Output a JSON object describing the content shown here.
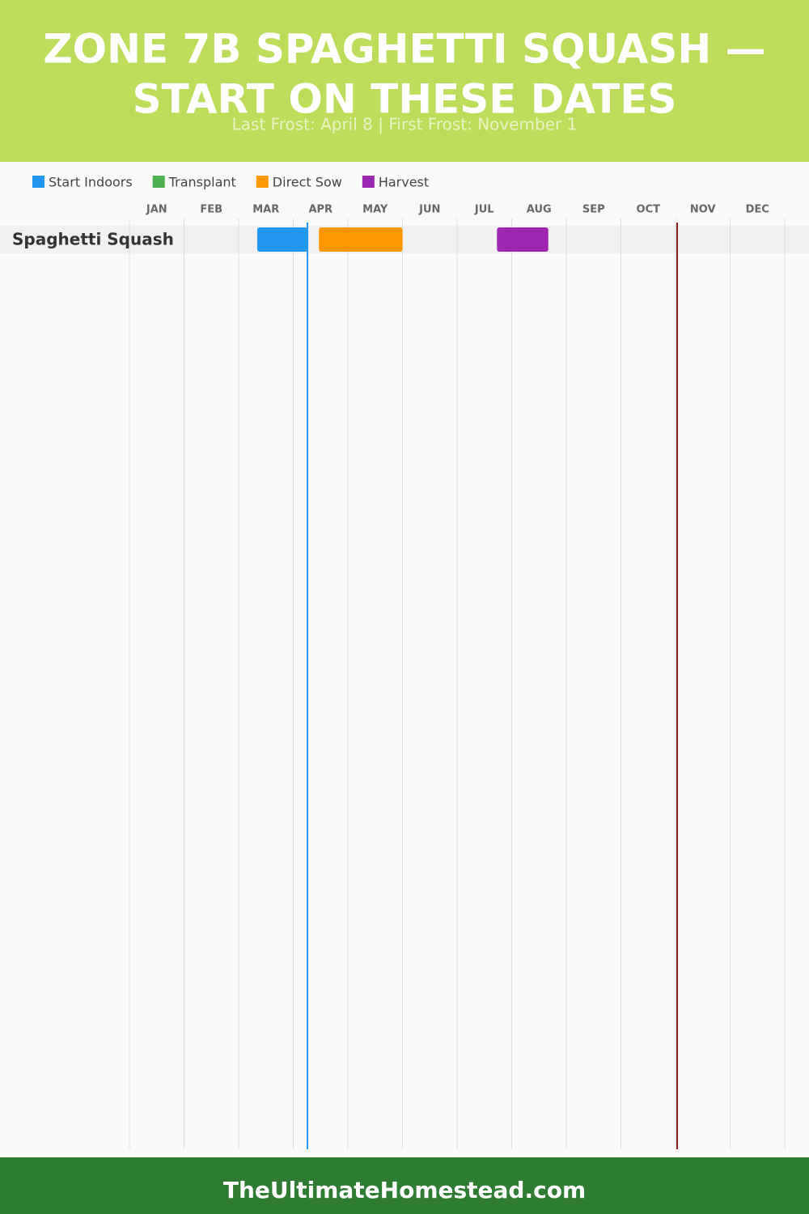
{
  "chart_data": {
    "type": "gantt",
    "title_lines": [
      "ZONE 7B SPAGHETTI SQUASH —",
      "START ON THESE DATES"
    ],
    "subtitle": "Last Frost: April 8 | First Frost: November 1",
    "categories": [
      "JAN",
      "FEB",
      "MAR",
      "APR",
      "MAY",
      "JUN",
      "JUL",
      "AUG",
      "SEP",
      "OCT",
      "NOV",
      "DEC"
    ],
    "xlim": [
      0,
      12
    ],
    "series": [
      {
        "name": "Start Indoors",
        "color": "#2196f3"
      },
      {
        "name": "Transplant",
        "color": "#4caf50"
      },
      {
        "name": "Direct Sow",
        "color": "#ff9800"
      },
      {
        "name": "Harvest",
        "color": "#9c27b0"
      }
    ],
    "rows": [
      {
        "label": "Spaghetti Squash",
        "bars": [
          {
            "series": 0,
            "start": 2.34,
            "end": 3.26
          },
          {
            "series": 2,
            "start": 3.47,
            "end": 5.0
          },
          {
            "series": 3,
            "start": 6.73,
            "end": 7.67
          }
        ]
      }
    ],
    "frost_lines": [
      {
        "value": 3.26,
        "color": "#2196f3"
      },
      {
        "value": 10.03,
        "color": "#8b1a1a"
      }
    ],
    "footer": "TheUltimateHomestead.com"
  }
}
